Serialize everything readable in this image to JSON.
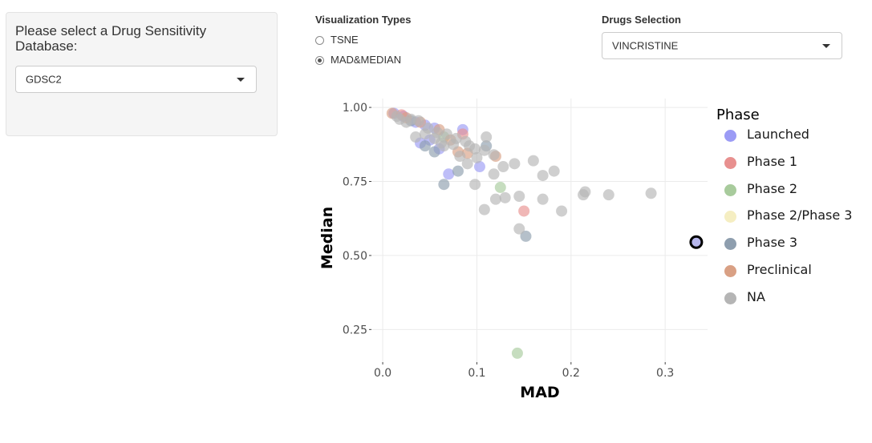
{
  "sidebar": {
    "label": "Please select a Drug Sensitivity Database:",
    "db_value": "GDSC2"
  },
  "viz": {
    "title": "Visualization Types",
    "options": [
      "TSNE",
      "MAD&MEDIAN"
    ],
    "selected": "MAD&MEDIAN"
  },
  "drugs": {
    "title": "Drugs Selection",
    "value": "VINCRISTINE"
  },
  "chart_data": {
    "type": "scatter",
    "xlabel": "MAD",
    "ylabel": "Median",
    "xlim": [
      -0.012,
      0.345
    ],
    "ylim": [
      0.14,
      1.03
    ],
    "xticks": [
      0.0,
      0.1,
      0.2,
      0.3
    ],
    "yticks": [
      0.25,
      0.5,
      0.75,
      1.0
    ],
    "xtick_labels": [
      "0.0",
      "0.1",
      "0.2",
      "0.3"
    ],
    "ytick_labels": [
      "0.25",
      "0.50",
      "0.75",
      "1.00"
    ],
    "grid": true,
    "legend_title": "Phase",
    "legend_position": "right",
    "series": [
      {
        "name": "Launched",
        "color": "#9b9bf5",
        "points": [
          [
            0.012,
            0.98
          ],
          [
            0.022,
            0.97
          ],
          [
            0.035,
            0.95
          ],
          [
            0.045,
            0.94
          ],
          [
            0.05,
            0.89
          ],
          [
            0.06,
            0.86
          ],
          [
            0.085,
            0.925
          ],
          [
            0.07,
            0.775
          ],
          [
            0.103,
            0.8
          ],
          [
            0.04,
            0.88
          ],
          [
            0.055,
            0.93
          ]
        ]
      },
      {
        "name": "Phase 1",
        "color": "#e8908f",
        "points": [
          [
            0.15,
            0.65
          ],
          [
            0.085,
            0.91
          ],
          [
            0.02,
            0.975
          ]
        ]
      },
      {
        "name": "Phase 2",
        "color": "#a8cb9c",
        "points": [
          [
            0.125,
            0.73
          ],
          [
            0.143,
            0.17
          ],
          [
            0.065,
            0.9
          ]
        ]
      },
      {
        "name": "Phase 2/Phase 3",
        "color": "#f5eec2",
        "points": []
      },
      {
        "name": "Phase 3",
        "color": "#8e9eae",
        "points": [
          [
            0.065,
            0.74
          ],
          [
            0.152,
            0.565
          ],
          [
            0.08,
            0.785
          ],
          [
            0.055,
            0.85
          ],
          [
            0.045,
            0.87
          ],
          [
            0.03,
            0.955
          ],
          [
            0.11,
            0.87
          ]
        ]
      },
      {
        "name": "Preclinical",
        "color": "#d9a084",
        "points": [
          [
            0.01,
            0.98
          ],
          [
            0.025,
            0.965
          ],
          [
            0.04,
            0.95
          ],
          [
            0.06,
            0.925
          ],
          [
            0.08,
            0.85
          ],
          [
            0.12,
            0.835
          ],
          [
            0.09,
            0.845
          ],
          [
            0.072,
            0.89
          ]
        ]
      },
      {
        "name": "NA",
        "color": "#b5b5b5",
        "points": [
          [
            0.015,
            0.97
          ],
          [
            0.03,
            0.96
          ],
          [
            0.038,
            0.955
          ],
          [
            0.048,
            0.93
          ],
          [
            0.058,
            0.915
          ],
          [
            0.068,
            0.91
          ],
          [
            0.078,
            0.895
          ],
          [
            0.088,
            0.885
          ],
          [
            0.098,
            0.86
          ],
          [
            0.108,
            0.855
          ],
          [
            0.118,
            0.84
          ],
          [
            0.128,
            0.8
          ],
          [
            0.14,
            0.81
          ],
          [
            0.16,
            0.82
          ],
          [
            0.17,
            0.77
          ],
          [
            0.182,
            0.785
          ],
          [
            0.118,
            0.775
          ],
          [
            0.098,
            0.74
          ],
          [
            0.108,
            0.655
          ],
          [
            0.12,
            0.69
          ],
          [
            0.13,
            0.695
          ],
          [
            0.145,
            0.7
          ],
          [
            0.17,
            0.69
          ],
          [
            0.19,
            0.65
          ],
          [
            0.145,
            0.59
          ],
          [
            0.215,
            0.715
          ],
          [
            0.213,
            0.705
          ],
          [
            0.24,
            0.705
          ],
          [
            0.285,
            0.71
          ],
          [
            0.11,
            0.9
          ],
          [
            0.09,
            0.81
          ],
          [
            0.075,
            0.875
          ],
          [
            0.065,
            0.87
          ],
          [
            0.045,
            0.91
          ],
          [
            0.055,
            0.895
          ],
          [
            0.035,
            0.9
          ],
          [
            0.082,
            0.835
          ],
          [
            0.1,
            0.83
          ],
          [
            0.025,
            0.95
          ],
          [
            0.018,
            0.96
          ],
          [
            0.062,
            0.88
          ],
          [
            0.092,
            0.87
          ]
        ]
      }
    ],
    "highlight": {
      "name": "VINCRISTINE",
      "x": 0.333,
      "y": 0.545
    }
  }
}
